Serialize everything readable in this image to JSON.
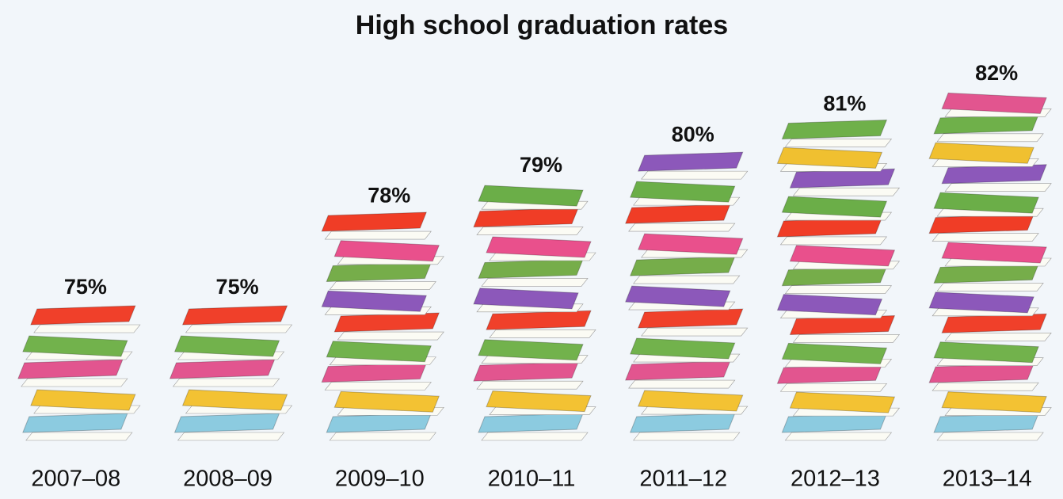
{
  "chart_data": {
    "type": "pictograph",
    "title": "High school graduation rates",
    "categories": [
      "2007–08",
      "2008–09",
      "2009–10",
      "2010–11",
      "2011–12",
      "2012–13",
      "2013–14"
    ],
    "values": [
      75,
      75,
      78,
      79,
      80,
      81,
      82
    ],
    "value_labels": [
      "75%",
      "75%",
      "78%",
      "79%",
      "80%",
      "81%",
      "82%"
    ]
  }
}
